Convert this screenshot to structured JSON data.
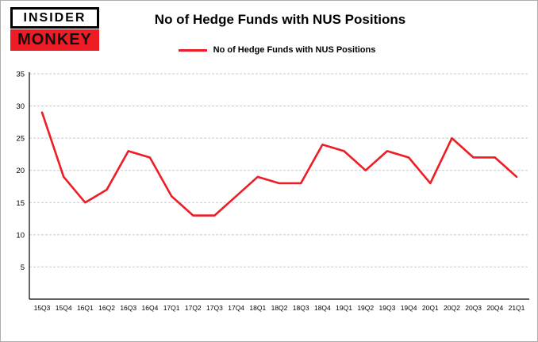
{
  "header": {
    "logo_top": "INSIDER",
    "logo_bottom": "MONKEY",
    "title": "No of Hedge Funds with NUS Positions"
  },
  "legend": {
    "label": "No of Hedge Funds with NUS Positions",
    "color": "#ee1c25"
  },
  "chart_data": {
    "type": "line",
    "title": "No of Hedge Funds with NUS Positions",
    "categories": [
      "15Q3",
      "15Q4",
      "16Q1",
      "16Q2",
      "16Q3",
      "16Q4",
      "17Q1",
      "17Q2",
      "17Q3",
      "17Q4",
      "18Q1",
      "18Q2",
      "18Q3",
      "18Q4",
      "19Q1",
      "19Q2",
      "19Q3",
      "19Q4",
      "20Q1",
      "20Q2",
      "20Q3",
      "20Q4",
      "21Q1"
    ],
    "values": [
      29,
      19,
      15,
      17,
      23,
      22,
      16,
      13,
      13,
      16,
      19,
      18,
      18,
      24,
      23,
      20,
      23,
      22,
      18,
      25,
      22,
      22,
      19
    ],
    "xlabel": "",
    "ylabel": "",
    "ylim": [
      0,
      35
    ],
    "y_ticks": [
      5,
      10,
      15,
      20,
      25,
      30,
      35
    ],
    "grid": true,
    "legend_position": "top",
    "line_color": "#ee1c25",
    "grid_color": "#c9c9c9",
    "axis_color": "#000000"
  }
}
